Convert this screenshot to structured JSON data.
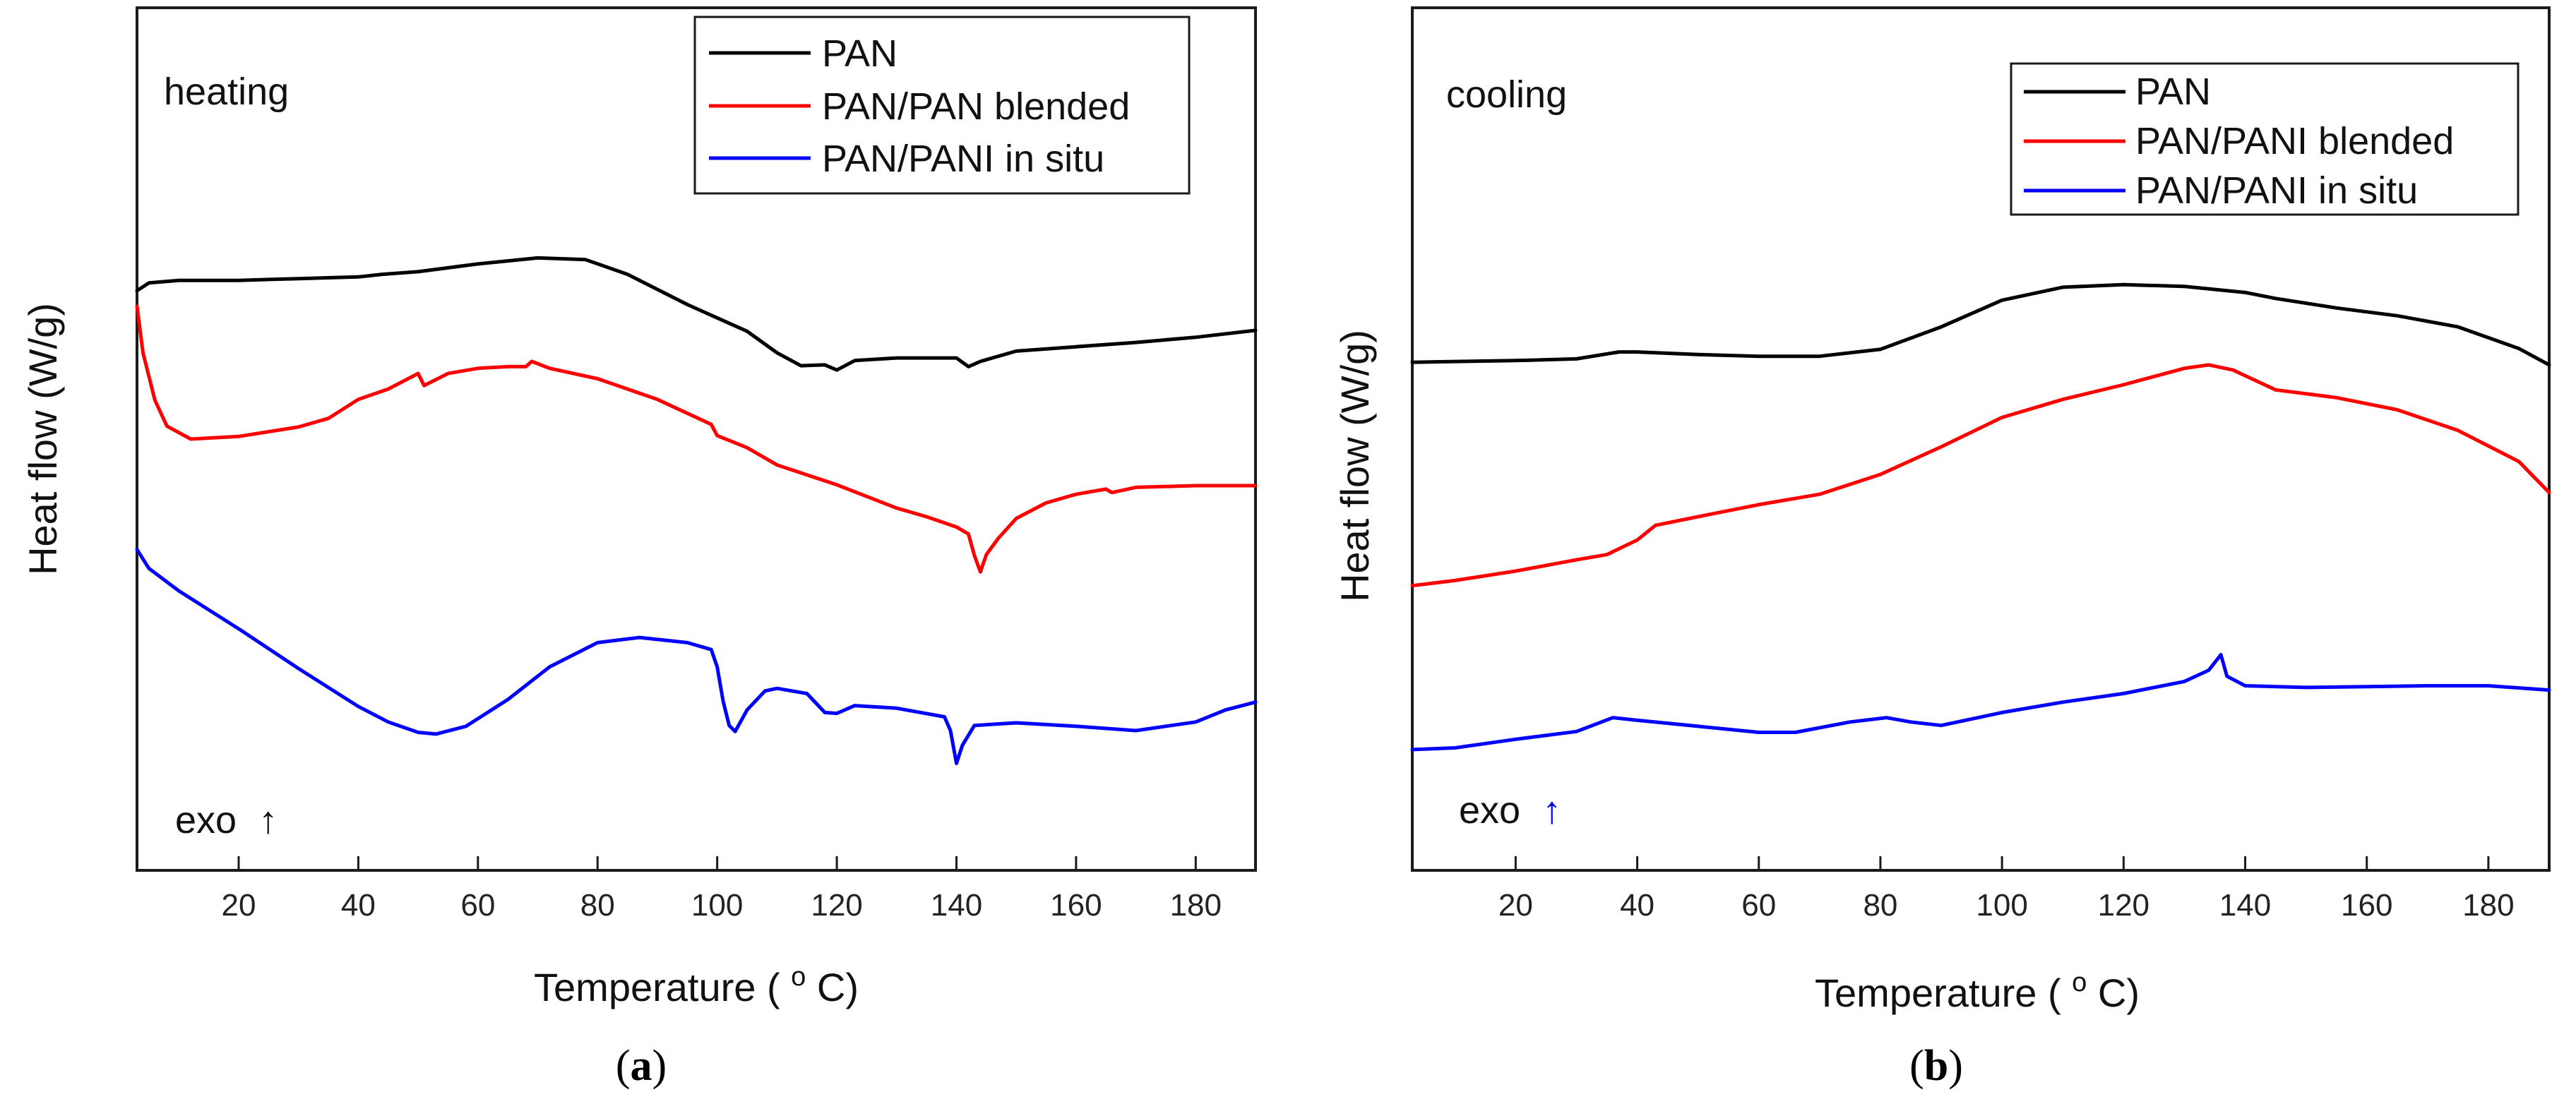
{
  "colors": {
    "pan": "#000000",
    "blended": "#ff0000",
    "insitu": "#0000ff",
    "axis": "#1a1a1a"
  },
  "chart_data": [
    {
      "type": "line",
      "panel": "a",
      "panel_label": {
        "open": "(",
        "letter": "a",
        "close": ")"
      },
      "condition_label": "heating",
      "annotation": {
        "text": "exo",
        "arrow": "↑"
      },
      "xlabel": {
        "text": "Temperature (",
        "sup": "o",
        "unit": "C)"
      },
      "ylabel": "Heat flow (W/g)",
      "xlim": [
        3,
        190
      ],
      "ylim": [
        0,
        1
      ],
      "xticks": [
        20,
        40,
        60,
        80,
        100,
        120,
        140,
        160,
        180
      ],
      "yticks": [],
      "legend": {
        "position": "top-right",
        "frame": true
      },
      "series": [
        {
          "name": "PAN",
          "color": "#000000",
          "points": [
            [
              3,
              0.672
            ],
            [
              5,
              0.681
            ],
            [
              10,
              0.684
            ],
            [
              20,
              0.684
            ],
            [
              30,
              0.686
            ],
            [
              40,
              0.688
            ],
            [
              44,
              0.691
            ],
            [
              50,
              0.694
            ],
            [
              60,
              0.703
            ],
            [
              70,
              0.71
            ],
            [
              78,
              0.708
            ],
            [
              85,
              0.691
            ],
            [
              95,
              0.656
            ],
            [
              105,
              0.625
            ],
            [
              110,
              0.6
            ],
            [
              114,
              0.585
            ],
            [
              118,
              0.586
            ],
            [
              120,
              0.58
            ],
            [
              123,
              0.591
            ],
            [
              130,
              0.594
            ],
            [
              140,
              0.594
            ],
            [
              142,
              0.584
            ],
            [
              144,
              0.59
            ],
            [
              150,
              0.602
            ],
            [
              160,
              0.607
            ],
            [
              170,
              0.612
            ],
            [
              180,
              0.618
            ],
            [
              190,
              0.626
            ]
          ]
        },
        {
          "name": "PAN/PAN blended",
          "color": "#ff0000",
          "points": [
            [
              3,
              0.654
            ],
            [
              4,
              0.6
            ],
            [
              6,
              0.545
            ],
            [
              8,
              0.515
            ],
            [
              12,
              0.5
            ],
            [
              20,
              0.503
            ],
            [
              30,
              0.514
            ],
            [
              35,
              0.524
            ],
            [
              40,
              0.546
            ],
            [
              45,
              0.558
            ],
            [
              50,
              0.576
            ],
            [
              51,
              0.562
            ],
            [
              55,
              0.576
            ],
            [
              60,
              0.582
            ],
            [
              65,
              0.584
            ],
            [
              68,
              0.584
            ],
            [
              69,
              0.59
            ],
            [
              72,
              0.582
            ],
            [
              80,
              0.57
            ],
            [
              90,
              0.546
            ],
            [
              99,
              0.517
            ],
            [
              100,
              0.504
            ],
            [
              105,
              0.49
            ],
            [
              110,
              0.47
            ],
            [
              120,
              0.447
            ],
            [
              130,
              0.42
            ],
            [
              135,
              0.41
            ],
            [
              140,
              0.398
            ],
            [
              142,
              0.39
            ],
            [
              143,
              0.365
            ],
            [
              144,
              0.346
            ],
            [
              145,
              0.366
            ],
            [
              147,
              0.385
            ],
            [
              150,
              0.408
            ],
            [
              155,
              0.426
            ],
            [
              160,
              0.436
            ],
            [
              165,
              0.442
            ],
            [
              166,
              0.438
            ],
            [
              170,
              0.444
            ],
            [
              180,
              0.446
            ],
            [
              190,
              0.446
            ]
          ]
        },
        {
          "name": "PAN/PANI in situ",
          "color": "#0000ff",
          "points": [
            [
              3,
              0.372
            ],
            [
              5,
              0.35
            ],
            [
              10,
              0.324
            ],
            [
              20,
              0.28
            ],
            [
              30,
              0.234
            ],
            [
              40,
              0.19
            ],
            [
              45,
              0.172
            ],
            [
              50,
              0.16
            ],
            [
              53,
              0.158
            ],
            [
              58,
              0.167
            ],
            [
              65,
              0.198
            ],
            [
              72,
              0.236
            ],
            [
              80,
              0.264
            ],
            [
              87,
              0.27
            ],
            [
              95,
              0.264
            ],
            [
              99,
              0.256
            ],
            [
              100,
              0.236
            ],
            [
              101,
              0.196
            ],
            [
              102,
              0.168
            ],
            [
              103,
              0.161
            ],
            [
              105,
              0.186
            ],
            [
              108,
              0.208
            ],
            [
              110,
              0.211
            ],
            [
              115,
              0.205
            ],
            [
              118,
              0.183
            ],
            [
              120,
              0.182
            ],
            [
              123,
              0.191
            ],
            [
              130,
              0.188
            ],
            [
              138,
              0.178
            ],
            [
              139,
              0.162
            ],
            [
              140,
              0.124
            ],
            [
              141,
              0.145
            ],
            [
              143,
              0.168
            ],
            [
              150,
              0.171
            ],
            [
              160,
              0.167
            ],
            [
              170,
              0.162
            ],
            [
              180,
              0.172
            ],
            [
              185,
              0.186
            ],
            [
              190,
              0.195
            ]
          ]
        }
      ]
    },
    {
      "type": "line",
      "panel": "b",
      "panel_label": {
        "open": "(",
        "letter": "b",
        "close": ")"
      },
      "condition_label": "cooling",
      "annotation": {
        "text": "exo",
        "arrow": "↑"
      },
      "xlabel": {
        "text": "Temperature (",
        "sup": "o",
        "unit": "C)"
      },
      "ylabel": "Heat flow (W/g)",
      "xlim": [
        3,
        190
      ],
      "ylim": [
        0,
        1
      ],
      "xticks": [
        20,
        40,
        60,
        80,
        100,
        120,
        140,
        160,
        180
      ],
      "yticks": [],
      "legend": {
        "position": "top-right",
        "frame": true
      },
      "series": [
        {
          "name": "PAN",
          "color": "#000000",
          "points": [
            [
              3,
              0.589
            ],
            [
              20,
              0.591
            ],
            [
              30,
              0.593
            ],
            [
              37,
              0.601
            ],
            [
              40,
              0.601
            ],
            [
              50,
              0.598
            ],
            [
              60,
              0.596
            ],
            [
              70,
              0.596
            ],
            [
              80,
              0.604
            ],
            [
              90,
              0.63
            ],
            [
              100,
              0.661
            ],
            [
              110,
              0.676
            ],
            [
              120,
              0.679
            ],
            [
              130,
              0.677
            ],
            [
              140,
              0.67
            ],
            [
              145,
              0.663
            ],
            [
              155,
              0.652
            ],
            [
              165,
              0.643
            ],
            [
              175,
              0.63
            ],
            [
              185,
              0.605
            ],
            [
              190,
              0.586
            ]
          ]
        },
        {
          "name": "PAN/PANI blended",
          "color": "#ff0000",
          "points": [
            [
              3,
              0.33
            ],
            [
              10,
              0.336
            ],
            [
              20,
              0.347
            ],
            [
              30,
              0.36
            ],
            [
              35,
              0.366
            ],
            [
              40,
              0.383
            ],
            [
              43,
              0.4
            ],
            [
              50,
              0.41
            ],
            [
              60,
              0.424
            ],
            [
              70,
              0.436
            ],
            [
              80,
              0.459
            ],
            [
              90,
              0.491
            ],
            [
              100,
              0.525
            ],
            [
              110,
              0.546
            ],
            [
              120,
              0.563
            ],
            [
              130,
              0.582
            ],
            [
              134,
              0.586
            ],
            [
              138,
              0.58
            ],
            [
              145,
              0.557
            ],
            [
              155,
              0.548
            ],
            [
              165,
              0.534
            ],
            [
              175,
              0.51
            ],
            [
              185,
              0.474
            ],
            [
              190,
              0.438
            ]
          ]
        },
        {
          "name": "PAN/PANI in situ",
          "color": "#0000ff",
          "points": [
            [
              3,
              0.14
            ],
            [
              10,
              0.142
            ],
            [
              20,
              0.152
            ],
            [
              30,
              0.161
            ],
            [
              36,
              0.177
            ],
            [
              40,
              0.174
            ],
            [
              50,
              0.167
            ],
            [
              60,
              0.16
            ],
            [
              66,
              0.16
            ],
            [
              75,
              0.172
            ],
            [
              81,
              0.177
            ],
            [
              85,
              0.172
            ],
            [
              90,
              0.168
            ],
            [
              100,
              0.183
            ],
            [
              110,
              0.195
            ],
            [
              120,
              0.205
            ],
            [
              130,
              0.219
            ],
            [
              134,
              0.232
            ],
            [
              136,
              0.25
            ],
            [
              137,
              0.225
            ],
            [
              140,
              0.214
            ],
            [
              150,
              0.212
            ],
            [
              160,
              0.213
            ],
            [
              170,
              0.214
            ],
            [
              180,
              0.214
            ],
            [
              190,
              0.209
            ]
          ]
        }
      ]
    }
  ]
}
